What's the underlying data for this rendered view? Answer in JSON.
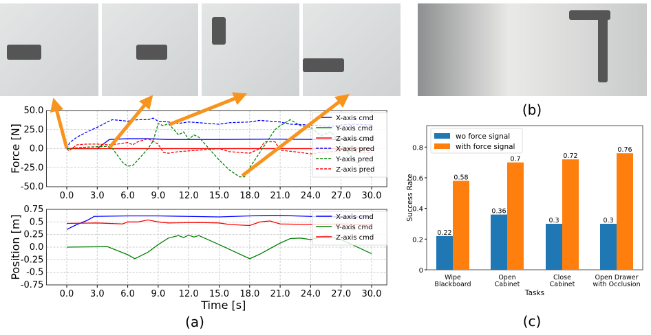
{
  "panels": {
    "a": "(a)",
    "b": "(b)",
    "c": "(c)"
  },
  "chart_data": [
    {
      "type": "line",
      "ylabel": "Force [N]",
      "xlabel": "",
      "xlim": [
        -2,
        31.5
      ],
      "ylim": [
        -50,
        50
      ],
      "xticks": [
        "0.0",
        "3.0",
        "6.0",
        "9.0",
        "12.0",
        "15.0",
        "18.0",
        "21.0",
        "24.0",
        "27.0",
        "30.0"
      ],
      "yticks": [
        "50.0",
        "25.0",
        "0.0",
        "-25.0",
        "-50.0"
      ],
      "grid": true,
      "legend": "right",
      "series": [
        {
          "name": "X-axis cmd",
          "color": "#0000ff",
          "dash": false,
          "points": [
            [
              0,
              0
            ],
            [
              3,
              0
            ],
            [
              4.2,
              12
            ],
            [
              6,
              13
            ],
            [
              8,
              13
            ],
            [
              10,
              12
            ],
            [
              15,
              12
            ],
            [
              20,
              12.5
            ],
            [
              25,
              12
            ],
            [
              30,
              12
            ]
          ]
        },
        {
          "name": "Y-axis cmd",
          "color": "#008000",
          "dash": false,
          "points": [
            [
              0,
              0
            ],
            [
              30,
              0
            ]
          ]
        },
        {
          "name": "Z-axis cmd",
          "color": "#ff0000",
          "dash": false,
          "points": [
            [
              0,
              0
            ],
            [
              30,
              0
            ]
          ]
        },
        {
          "name": "X-axis pred",
          "color": "#0000ff",
          "dash": true,
          "points": [
            [
              0,
              0
            ],
            [
              0.3,
              8
            ],
            [
              1,
              15
            ],
            [
              2,
              22
            ],
            [
              3,
              28
            ],
            [
              4,
              35
            ],
            [
              4.5,
              38
            ],
            [
              6,
              36
            ],
            [
              7,
              38
            ],
            [
              8,
              38
            ],
            [
              8.5,
              40
            ],
            [
              9,
              36
            ],
            [
              10,
              35
            ],
            [
              11,
              33
            ],
            [
              12,
              35
            ],
            [
              14,
              33
            ],
            [
              15,
              32
            ],
            [
              16,
              34
            ],
            [
              18,
              35
            ],
            [
              19,
              37
            ],
            [
              20,
              36
            ],
            [
              21,
              35
            ],
            [
              22,
              32
            ],
            [
              24,
              31
            ],
            [
              26,
              29
            ],
            [
              27,
              31
            ],
            [
              28,
              32
            ],
            [
              30,
              31
            ]
          ]
        },
        {
          "name": "Y-axis pred",
          "color": "#008000",
          "dash": true,
          "points": [
            [
              0,
              0
            ],
            [
              2,
              2
            ],
            [
              4,
              3
            ],
            [
              4.5,
              0
            ],
            [
              5.5,
              -18
            ],
            [
              6,
              -23
            ],
            [
              6.5,
              -22
            ],
            [
              7,
              -15
            ],
            [
              8,
              0
            ],
            [
              8.5,
              10
            ],
            [
              9,
              33
            ],
            [
              9.5,
              30
            ],
            [
              10,
              33
            ],
            [
              11,
              18
            ],
            [
              11.5,
              22
            ],
            [
              12,
              12
            ],
            [
              12.5,
              18
            ],
            [
              13,
              15
            ],
            [
              14,
              0
            ],
            [
              15,
              -15
            ],
            [
              16,
              -28
            ],
            [
              17,
              -37
            ],
            [
              17.5,
              -37
            ],
            [
              18,
              -25
            ],
            [
              19,
              -5
            ],
            [
              20,
              15
            ],
            [
              20.5,
              25
            ],
            [
              21,
              30
            ],
            [
              22,
              38
            ],
            [
              23,
              30
            ],
            [
              24,
              28
            ],
            [
              25,
              17
            ],
            [
              26,
              22
            ],
            [
              27,
              5
            ],
            [
              28,
              -10
            ],
            [
              29,
              -25
            ],
            [
              30,
              -38
            ]
          ]
        },
        {
          "name": "Z-axis pred",
          "color": "#ff0000",
          "dash": true,
          "points": [
            [
              0,
              0
            ],
            [
              0.2,
              -3
            ],
            [
              1,
              5
            ],
            [
              2,
              6
            ],
            [
              3,
              6
            ],
            [
              4,
              5
            ],
            [
              5,
              6
            ],
            [
              6,
              8
            ],
            [
              6.5,
              5
            ],
            [
              7,
              9
            ],
            [
              8,
              13
            ],
            [
              9,
              6
            ],
            [
              9.5,
              -5
            ],
            [
              10,
              -6
            ],
            [
              11,
              -4
            ],
            [
              12,
              -3
            ],
            [
              14,
              -1
            ],
            [
              15,
              0
            ],
            [
              16,
              -4
            ],
            [
              18,
              -6
            ],
            [
              19,
              0
            ],
            [
              19.5,
              9
            ],
            [
              20.5,
              9
            ],
            [
              21,
              -2
            ],
            [
              23,
              -5
            ],
            [
              24,
              -7
            ],
            [
              25,
              -5
            ],
            [
              27,
              -3
            ],
            [
              28,
              -4
            ],
            [
              30,
              -5
            ]
          ]
        }
      ]
    },
    {
      "type": "line",
      "ylabel": "Position [m]",
      "xlabel": "Time [s]",
      "xlim": [
        -2,
        31.5
      ],
      "ylim": [
        -0.75,
        0.75
      ],
      "xticks": [
        "0.0",
        "3.0",
        "6.0",
        "9.0",
        "12.0",
        "15.0",
        "18.0",
        "21.0",
        "24.0",
        "27.0",
        "30.0"
      ],
      "yticks": [
        "0.75",
        "0.5",
        "0.25",
        "0.0",
        "-0.25",
        "-0.5",
        "-0.75"
      ],
      "grid": true,
      "legend": "right",
      "series": [
        {
          "name": "X-axis cmd",
          "color": "#0000ff",
          "dash": false,
          "points": [
            [
              0,
              0.35
            ],
            [
              1,
              0.45
            ],
            [
              2,
              0.53
            ],
            [
              2.7,
              0.61
            ],
            [
              6,
              0.62
            ],
            [
              9,
              0.62
            ],
            [
              12,
              0.61
            ],
            [
              15,
              0.6
            ],
            [
              18,
              0.62
            ],
            [
              20,
              0.63
            ],
            [
              21,
              0.63
            ],
            [
              24,
              0.61
            ],
            [
              27,
              0.6
            ],
            [
              30,
              0.6
            ]
          ]
        },
        {
          "name": "Y-axis cmd",
          "color": "#008000",
          "dash": false,
          "points": [
            [
              0,
              0
            ],
            [
              4,
              0.01
            ],
            [
              6,
              -0.15
            ],
            [
              6.7,
              -0.23
            ],
            [
              7,
              -0.2
            ],
            [
              8,
              -0.1
            ],
            [
              9,
              0.05
            ],
            [
              10,
              0.18
            ],
            [
              11,
              0.23
            ],
            [
              11.5,
              0.19
            ],
            [
              12,
              0.24
            ],
            [
              12.5,
              0.2
            ],
            [
              13,
              0.23
            ],
            [
              15,
              0.05
            ],
            [
              18,
              -0.23
            ],
            [
              19,
              -0.14
            ],
            [
              21,
              0.08
            ],
            [
              22,
              0.17
            ],
            [
              23,
              0.18
            ],
            [
              24,
              0.15
            ],
            [
              25,
              0.2
            ],
            [
              25.5,
              0.23
            ],
            [
              27,
              0.15
            ],
            [
              30,
              -0.13
            ]
          ]
        },
        {
          "name": "Z-axis cmd",
          "color": "#ff0000",
          "dash": false,
          "points": [
            [
              0,
              0.47
            ],
            [
              3,
              0.48
            ],
            [
              5.5,
              0.46
            ],
            [
              6,
              0.5
            ],
            [
              7,
              0.5
            ],
            [
              8,
              0.54
            ],
            [
              9,
              0.5
            ],
            [
              10,
              0.48
            ],
            [
              13,
              0.49
            ],
            [
              15,
              0.48
            ],
            [
              16,
              0.45
            ],
            [
              18,
              0.43
            ],
            [
              19,
              0.5
            ],
            [
              20,
              0.52
            ],
            [
              21,
              0.46
            ],
            [
              24,
              0.45
            ],
            [
              27,
              0.46
            ],
            [
              30,
              0.45
            ]
          ]
        }
      ]
    },
    {
      "type": "bar",
      "ylabel": "Success Rate",
      "xlabel": "Tasks",
      "ylim": [
        0,
        0.94
      ],
      "yticks": [
        "0",
        "0.2",
        "0.4",
        "0.6",
        "0.8"
      ],
      "categories": [
        [
          "Wipe",
          "Blackboard"
        ],
        [
          "Open",
          "Cabinet"
        ],
        [
          "Close",
          "Cabinet"
        ],
        [
          "Open Drawer",
          "with Occlusion"
        ]
      ],
      "legend": "top-left",
      "series": [
        {
          "name": "wo force signal",
          "color": "#1f77b4",
          "values": [
            0.22,
            0.36,
            0.3,
            0.3
          ],
          "labels": [
            "0.22",
            "0.36",
            "0.3",
            "0.3"
          ]
        },
        {
          "name": "with force signal",
          "color": "#ff7f0e",
          "values": [
            0.58,
            0.7,
            0.72,
            0.76
          ],
          "labels": [
            "0.58",
            "0.7",
            "0.72",
            "0.76"
          ]
        }
      ]
    }
  ]
}
